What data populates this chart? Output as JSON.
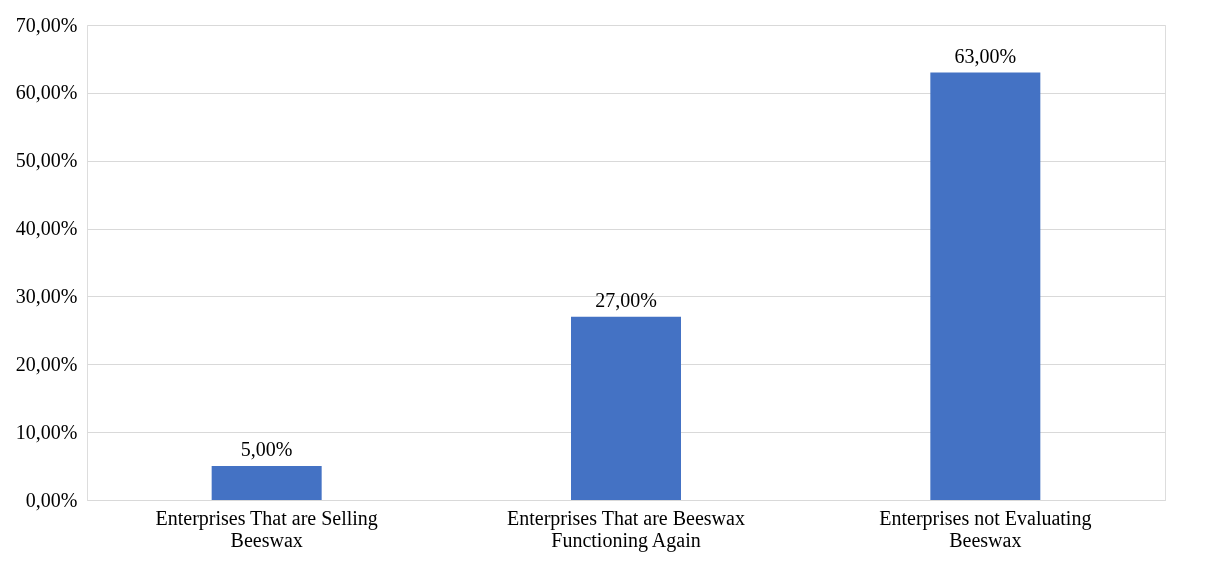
{
  "chart_data": {
    "type": "bar",
    "categories": [
      "Enterprises That are Selling Beeswax",
      "Enterprises That are Beeswax Functioning Again",
      "Enterprises not Evaluating Beeswax"
    ],
    "values": [
      5,
      27,
      63
    ],
    "color": "#4472c4",
    "value_labels": [
      "5,00%",
      "27,00%",
      "63,00%"
    ],
    "ylim": [
      0,
      70
    ],
    "yticks": [
      {
        "value": 0,
        "label": "0,00%"
      },
      {
        "value": 10,
        "label": "10,00%"
      },
      {
        "value": 20,
        "label": "20,00%"
      },
      {
        "value": 30,
        "label": "30,00%"
      },
      {
        "value": 40,
        "label": "40,00%"
      },
      {
        "value": 50,
        "label": "50,00%"
      },
      {
        "value": 60,
        "label": "60,00%"
      },
      {
        "value": 70,
        "label": "70,00%"
      }
    ],
    "grid": "y"
  }
}
